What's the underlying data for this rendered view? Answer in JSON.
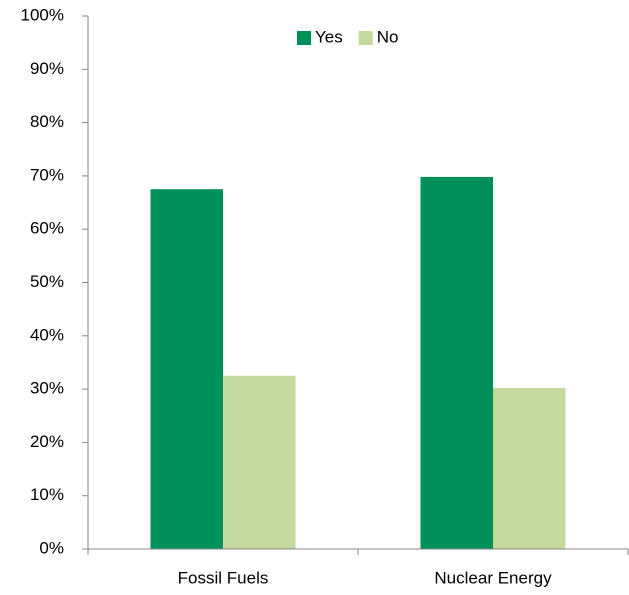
{
  "chart_data": {
    "type": "bar",
    "categories": [
      "Fossil Fuels",
      "Nuclear Energy"
    ],
    "series": [
      {
        "name": "Yes",
        "color": "#00915a",
        "values": [
          67.5,
          69.8
        ]
      },
      {
        "name": "No",
        "color": "#c4d99d",
        "values": [
          32.5,
          30.2
        ]
      }
    ],
    "ylim": [
      0,
      100
    ],
    "yticks": [
      {
        "value": 0,
        "label": "0%"
      },
      {
        "value": 10,
        "label": "10%"
      },
      {
        "value": 20,
        "label": "20%"
      },
      {
        "value": 30,
        "label": "30%"
      },
      {
        "value": 40,
        "label": "40%"
      },
      {
        "value": 50,
        "label": "50%"
      },
      {
        "value": 60,
        "label": "60%"
      },
      {
        "value": 70,
        "label": "70%"
      },
      {
        "value": 80,
        "label": "80%"
      },
      {
        "value": 90,
        "label": "90%"
      },
      {
        "value": 100,
        "label": "100%"
      }
    ],
    "grid": false,
    "legend": "top"
  }
}
